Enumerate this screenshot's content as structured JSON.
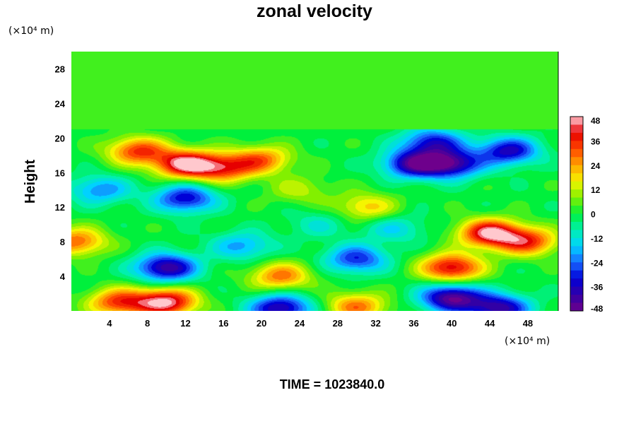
{
  "chart_data": {
    "type": "heatmap",
    "title": "zonal velocity",
    "ylabel": "Height",
    "y_unit": "(×10⁴ m)",
    "x_unit": "(×10⁴ m)",
    "xlim": [
      0,
      51.2
    ],
    "ylim": [
      0,
      30
    ],
    "x_ticks": [
      "4",
      "8",
      "12",
      "16",
      "20",
      "24",
      "28",
      "32",
      "36",
      "40",
      "44",
      "48"
    ],
    "y_ticks": [
      "4",
      "8",
      "12",
      "16",
      "20",
      "24",
      "28"
    ],
    "colorbar": {
      "range": [
        -48,
        48
      ],
      "ticks": [
        "48",
        "36",
        "24",
        "12",
        "0",
        "-12",
        "-24",
        "-36",
        "-48"
      ]
    },
    "field_features": [
      {
        "x": 12,
        "y": 17,
        "value": 46
      },
      {
        "x": 7,
        "y": 18.5,
        "value": 34
      },
      {
        "x": 16,
        "y": 16.5,
        "value": 32
      },
      {
        "x": 20,
        "y": 17.5,
        "value": 28
      },
      {
        "x": 10,
        "y": 1,
        "value": 46
      },
      {
        "x": 5,
        "y": 1,
        "value": 34
      },
      {
        "x": 30,
        "y": 0.5,
        "value": 28
      },
      {
        "x": 44,
        "y": 9,
        "value": 46
      },
      {
        "x": 40,
        "y": 5,
        "value": 42
      },
      {
        "x": 48,
        "y": 8,
        "value": 34
      },
      {
        "x": 22,
        "y": 4,
        "value": 28
      },
      {
        "x": 0.5,
        "y": 8,
        "value": 30
      },
      {
        "x": 36,
        "y": 17,
        "value": -40
      },
      {
        "x": 40,
        "y": 17,
        "value": -40
      },
      {
        "x": 38,
        "y": 19.5,
        "value": -32
      },
      {
        "x": 46,
        "y": 18.5,
        "value": -36
      },
      {
        "x": 12,
        "y": 13,
        "value": -34
      },
      {
        "x": 10,
        "y": 5,
        "value": -42
      },
      {
        "x": 40,
        "y": 1.5,
        "value": -46
      },
      {
        "x": 45,
        "y": 0.3,
        "value": -40
      },
      {
        "x": 30,
        "y": 6,
        "value": -30
      },
      {
        "x": 22,
        "y": 0.3,
        "value": -40
      },
      {
        "x": 18,
        "y": 7.5,
        "value": -20
      },
      {
        "x": 3,
        "y": 14,
        "value": -22
      },
      {
        "x": 34,
        "y": 9.5,
        "value": -14
      },
      {
        "x": 26,
        "y": 10,
        "value": -10
      },
      {
        "x": 24,
        "y": 14,
        "value": 12
      },
      {
        "x": 31,
        "y": 12,
        "value": 20
      }
    ],
    "upper_layer_value": 3
  },
  "footer": {
    "time_label": "TIME = 1023840.0"
  }
}
